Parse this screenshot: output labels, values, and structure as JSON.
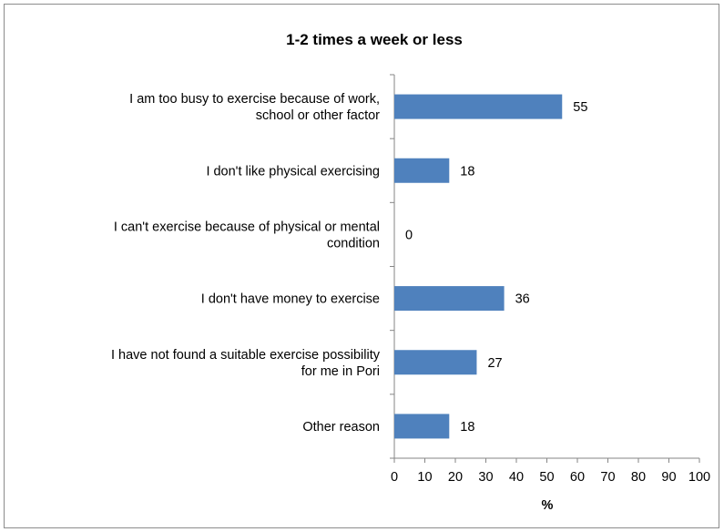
{
  "chart_data": {
    "type": "bar",
    "orientation": "horizontal",
    "title": "1-2 times a week or less",
    "xlabel": "%",
    "ylabel": "",
    "categories": [
      [
        "I am too busy to exercise because of work,",
        "school or other factor"
      ],
      [
        "I don't like physical exercising"
      ],
      [
        "I can't exercise because of physical or mental",
        "condition"
      ],
      [
        "I don't have money to exercise"
      ],
      [
        "I have not found a suitable exercise possibility",
        "for me in Pori"
      ],
      [
        "Other reason"
      ]
    ],
    "values": [
      55,
      18,
      0,
      36,
      27,
      18
    ],
    "xlim": [
      0,
      100
    ],
    "xticks": [
      0,
      10,
      20,
      30,
      40,
      50,
      60,
      70,
      80,
      90,
      100
    ],
    "grid": false,
    "legend": "none",
    "bar_color": "#4f81bd"
  }
}
